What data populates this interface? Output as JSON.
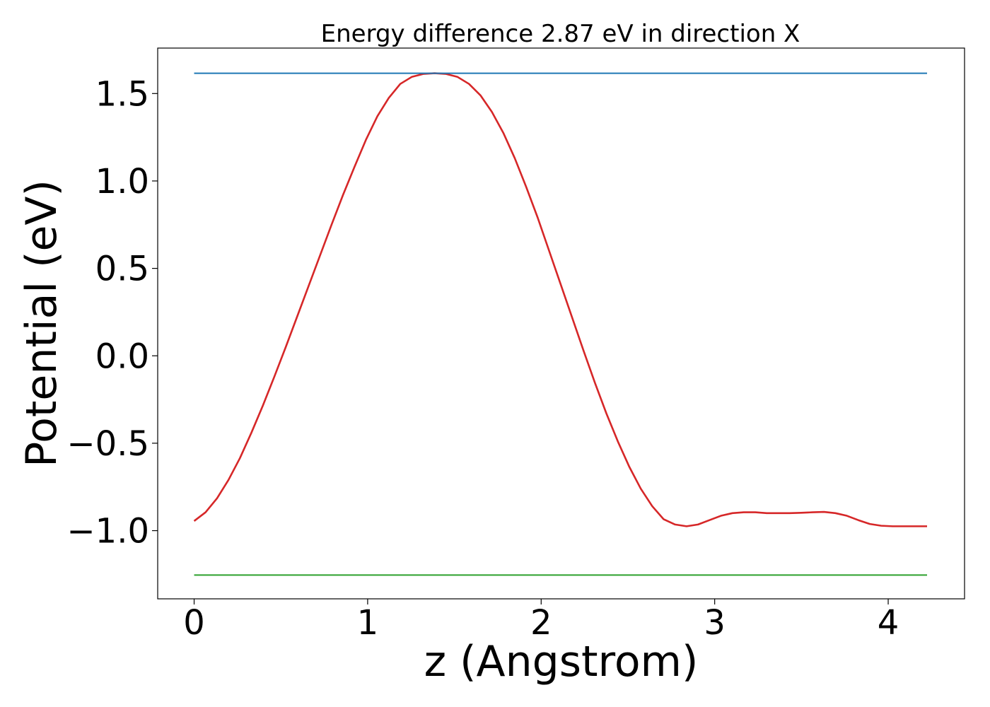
{
  "chart_data": {
    "type": "line",
    "title": "Energy difference 2.87 eV in direction X",
    "xlabel": "z (Angstrom)",
    "ylabel": "Potential (eV)",
    "xlim": [
      -0.21,
      4.44
    ],
    "ylim": [
      -1.39,
      1.76
    ],
    "x_ticks": [
      0,
      1,
      2,
      3,
      4
    ],
    "x_tick_labels": [
      "0",
      "1",
      "2",
      "3",
      "4"
    ],
    "y_ticks": [
      -1.0,
      -0.5,
      0.0,
      0.5,
      1.0,
      1.5
    ],
    "y_tick_labels": [
      "−1.0",
      "−0.5",
      "0.0",
      "0.5",
      "1.0",
      "1.5"
    ],
    "grid": false,
    "series": [
      {
        "color": "#d62728",
        "x": [
          0.0,
          0.066,
          0.132,
          0.198,
          0.264,
          0.33,
          0.396,
          0.462,
          0.528,
          0.594,
          0.66,
          0.726,
          0.792,
          0.858,
          0.924,
          0.99,
          1.056,
          1.122,
          1.188,
          1.254,
          1.32,
          1.386,
          1.452,
          1.518,
          1.584,
          1.65,
          1.716,
          1.782,
          1.848,
          1.914,
          1.98,
          2.046,
          2.112,
          2.178,
          2.244,
          2.31,
          2.376,
          2.442,
          2.508,
          2.574,
          2.64,
          2.706,
          2.772,
          2.838,
          2.904,
          2.97,
          3.036,
          3.102,
          3.168,
          3.234,
          3.3,
          3.366,
          3.432,
          3.498,
          3.564,
          3.63,
          3.696,
          3.762,
          3.828,
          3.894,
          3.96,
          4.026,
          4.092,
          4.158,
          4.224
        ],
        "y": [
          -0.945,
          -0.895,
          -0.815,
          -0.71,
          -0.585,
          -0.44,
          -0.285,
          -0.12,
          0.05,
          0.225,
          0.4,
          0.575,
          0.75,
          0.92,
          1.08,
          1.235,
          1.37,
          1.475,
          1.555,
          1.595,
          1.612,
          1.616,
          1.612,
          1.595,
          1.555,
          1.49,
          1.395,
          1.275,
          1.13,
          0.965,
          0.79,
          0.6,
          0.41,
          0.22,
          0.03,
          -0.155,
          -0.33,
          -0.49,
          -0.635,
          -0.76,
          -0.86,
          -0.935,
          -0.965,
          -0.975,
          -0.965,
          -0.94,
          -0.915,
          -0.9,
          -0.895,
          -0.895,
          -0.9,
          -0.9,
          -0.9,
          -0.898,
          -0.895,
          -0.893,
          -0.9,
          -0.915,
          -0.94,
          -0.962,
          -0.972,
          -0.975,
          -0.975,
          -0.975,
          -0.975
        ]
      },
      {
        "color": "#1f77b4",
        "x": [
          0.0,
          4.224
        ],
        "y": [
          1.616,
          1.616
        ]
      },
      {
        "color": "#2ca02c",
        "x": [
          0.0,
          4.224
        ],
        "y": [
          -1.254,
          -1.254
        ]
      }
    ]
  }
}
